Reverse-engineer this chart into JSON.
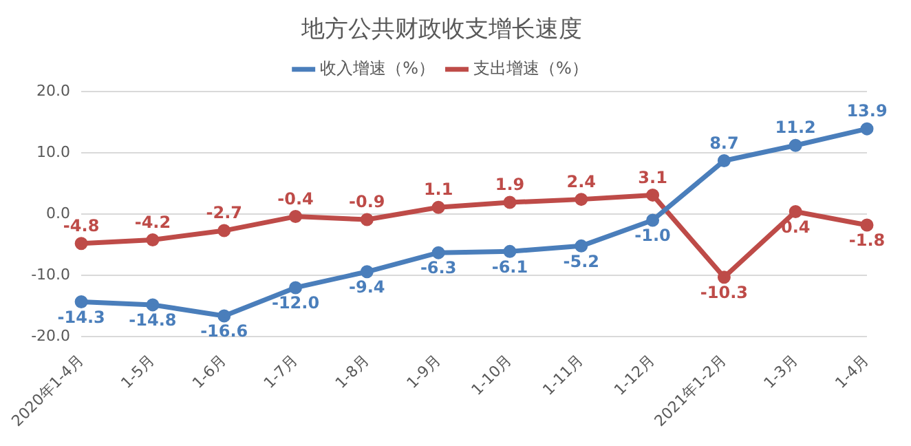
{
  "chart_data": {
    "type": "line",
    "title": "地方公共财政收支增长速度",
    "categories": [
      "2020年1-4月",
      "1-5月",
      "1-6月",
      "1-7月",
      "1-8月",
      "1-9月",
      "1-10月",
      "1-11月",
      "1-12月",
      "2021年1-2月",
      "1-3月",
      "1-4月"
    ],
    "series": [
      {
        "name": "收入增速（%）",
        "color": "#4a7ebb",
        "values": [
          -14.3,
          -14.8,
          -16.6,
          -12.0,
          -9.4,
          -6.3,
          -6.1,
          -5.2,
          -1.0,
          8.7,
          11.2,
          13.9
        ],
        "value_labels": [
          "-14.3",
          "-14.8",
          "-16.6",
          "-12.0",
          "-9.4",
          "-6.3",
          "-6.1",
          "-5.2",
          "-1.0",
          "8.7",
          "11.2",
          "13.9"
        ]
      },
      {
        "name": "支出增速（%）",
        "color": "#be4b48",
        "values": [
          -4.8,
          -4.2,
          -2.7,
          -0.4,
          -0.9,
          1.1,
          1.9,
          2.4,
          3.1,
          -10.3,
          0.4,
          -1.8
        ],
        "value_labels": [
          "-4.8",
          "-4.2",
          "-2.7",
          "-0.4",
          "-0.9",
          "1.1",
          "1.9",
          "2.4",
          "3.1",
          "-10.3",
          "0.4",
          "-1.8"
        ]
      }
    ],
    "ylim": [
      -20,
      20
    ],
    "yticks": [
      {
        "value": -20,
        "label": "-20.0"
      },
      {
        "value": -10,
        "label": "-10.0"
      },
      {
        "value": 0,
        "label": "0.0"
      },
      {
        "value": 10,
        "label": "10.0"
      },
      {
        "value": 20,
        "label": "20.0"
      }
    ],
    "grid": "y",
    "legend": "top",
    "marker": "circle",
    "line_style": "solid"
  }
}
